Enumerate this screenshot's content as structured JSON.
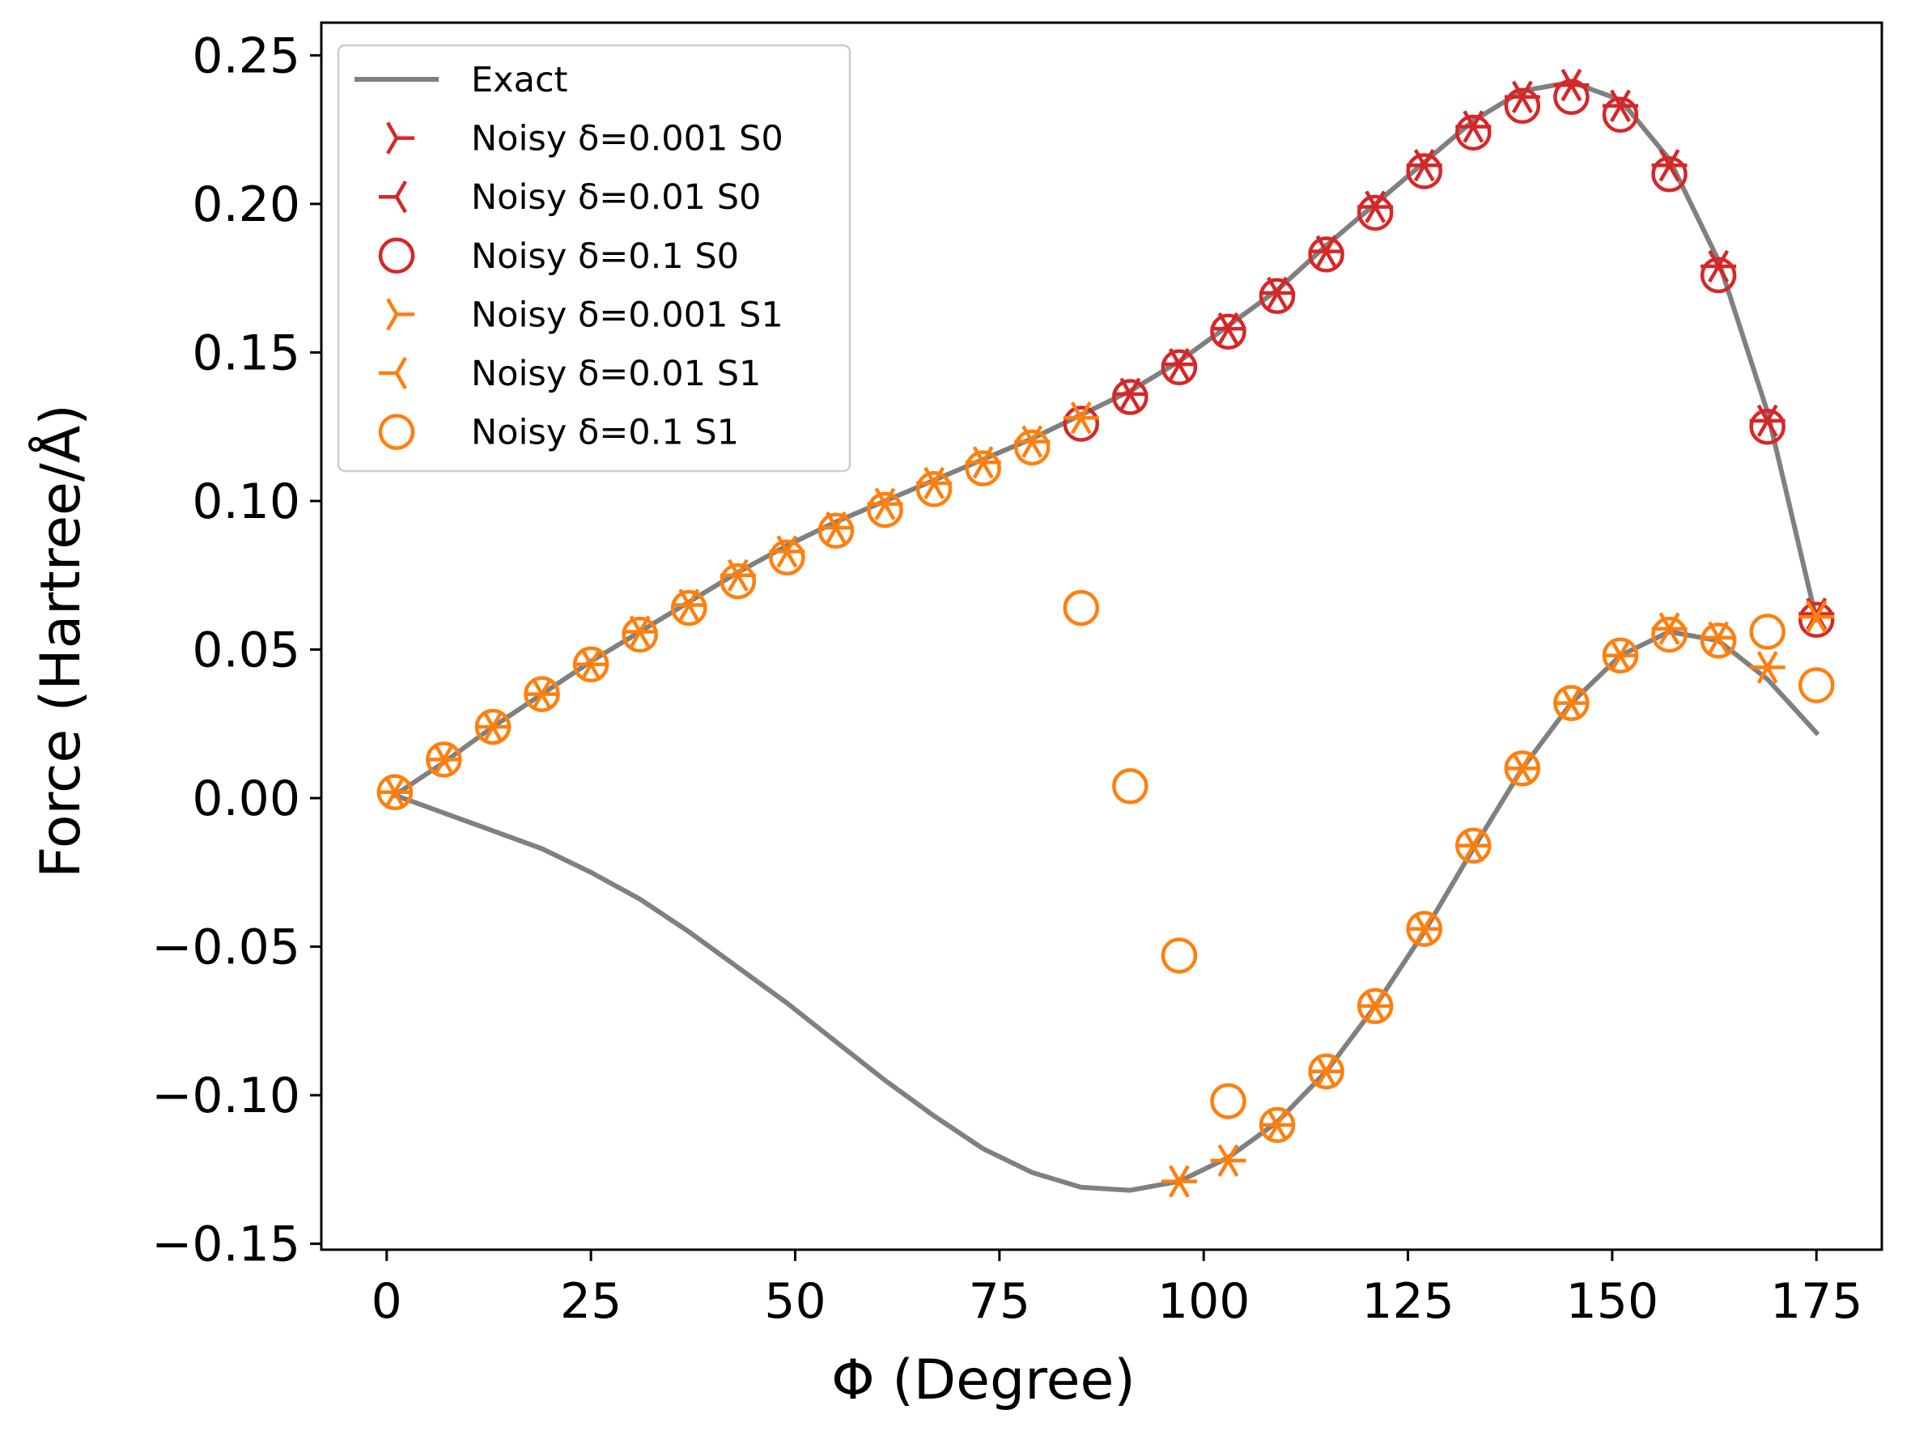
{
  "chart_data": {
    "type": "line+scatter",
    "xlabel": "Φ (Degree)",
    "ylabel": "Force (Hartree/Å)",
    "xlim": [
      -8,
      183
    ],
    "ylim": [
      -0.152,
      0.261
    ],
    "xticks": [
      0,
      25,
      50,
      75,
      100,
      125,
      150,
      175
    ],
    "xtick_labels": [
      "0",
      "25",
      "50",
      "75",
      "100",
      "125",
      "150",
      "175"
    ],
    "yticks": [
      -0.15,
      -0.1,
      -0.05,
      0.0,
      0.05,
      0.1,
      0.15,
      0.2,
      0.25
    ],
    "ytick_labels": [
      "−0.15",
      "−0.10",
      "−0.05",
      "0.00",
      "0.05",
      "0.10",
      "0.15",
      "0.20",
      "0.25"
    ],
    "legend_position": "top-left",
    "colors": {
      "exact": "#808080",
      "s0": "#d62728",
      "s1": "#ff7f0e"
    },
    "exact_lines": [
      {
        "name": "Exact",
        "x": [
          1,
          7,
          13,
          19,
          25,
          31,
          37,
          43,
          49,
          55,
          61,
          67,
          73,
          79,
          85,
          91,
          97,
          103,
          109,
          115,
          121,
          127,
          133,
          139,
          145,
          151,
          157,
          163,
          169,
          175
        ],
        "y": [
          0.001,
          0.012,
          0.024,
          0.035,
          0.046,
          0.056,
          0.066,
          0.076,
          0.085,
          0.093,
          0.1,
          0.107,
          0.114,
          0.121,
          0.129,
          0.137,
          0.147,
          0.159,
          0.171,
          0.186,
          0.2,
          0.214,
          0.228,
          0.238,
          0.241,
          0.235,
          0.215,
          0.181,
          0.13,
          0.06
        ]
      },
      {
        "name": "Exact",
        "x": [
          1,
          7,
          13,
          19,
          25,
          31,
          37,
          43,
          49,
          55,
          61,
          67,
          73,
          79,
          85,
          91,
          97,
          103,
          109,
          115,
          121,
          127,
          133,
          139,
          145,
          151,
          157,
          163,
          169,
          175
        ],
        "y": [
          0.001,
          -0.005,
          -0.011,
          -0.017,
          -0.025,
          -0.034,
          -0.045,
          -0.057,
          -0.069,
          -0.082,
          -0.095,
          -0.107,
          -0.118,
          -0.126,
          -0.131,
          -0.132,
          -0.129,
          -0.121,
          -0.109,
          -0.092,
          -0.07,
          -0.045,
          -0.017,
          0.01,
          0.032,
          0.048,
          0.056,
          0.053,
          0.04,
          0.022
        ]
      }
    ],
    "series": [
      {
        "name": "Noisy δ=0.001 S0",
        "marker": "tri_right",
        "color": "#d62728",
        "x": [
          91,
          97,
          103,
          109,
          115,
          121,
          127,
          133,
          139,
          145,
          151,
          157,
          163,
          169,
          175
        ],
        "y": [
          0.136,
          0.146,
          0.158,
          0.17,
          0.184,
          0.199,
          0.213,
          0.226,
          0.236,
          0.24,
          0.233,
          0.213,
          0.179,
          0.127,
          0.062
        ]
      },
      {
        "name": "Noisy δ=0.01 S0",
        "marker": "tri_left",
        "color": "#d62728",
        "x": [
          91,
          97,
          103,
          109,
          115,
          121,
          127,
          133,
          139,
          145,
          151,
          157,
          163,
          169,
          175
        ],
        "y": [
          0.136,
          0.146,
          0.158,
          0.17,
          0.184,
          0.199,
          0.213,
          0.226,
          0.236,
          0.24,
          0.233,
          0.213,
          0.179,
          0.127,
          0.062
        ]
      },
      {
        "name": "Noisy δ=0.1 S0",
        "marker": "circle",
        "color": "#d62728",
        "x": [
          85,
          91,
          97,
          103,
          109,
          115,
          121,
          127,
          133,
          139,
          145,
          151,
          157,
          163,
          169,
          175
        ],
        "y": [
          0.126,
          0.135,
          0.145,
          0.157,
          0.169,
          0.183,
          0.197,
          0.211,
          0.224,
          0.233,
          0.236,
          0.23,
          0.21,
          0.176,
          0.125,
          0.06
        ]
      },
      {
        "name": "Noisy δ=0.001 S1",
        "marker": "tri_right",
        "color": "#ff7f0e",
        "x": [
          1,
          7,
          13,
          19,
          25,
          31,
          37,
          43,
          49,
          55,
          61,
          67,
          73,
          79,
          85,
          97,
          103,
          109,
          115,
          121,
          127,
          133,
          139,
          145,
          151,
          157,
          163,
          169,
          175
        ],
        "y": [
          0.002,
          0.013,
          0.024,
          0.035,
          0.045,
          0.056,
          0.065,
          0.075,
          0.083,
          0.091,
          0.099,
          0.106,
          0.113,
          0.12,
          0.128,
          -0.129,
          -0.122,
          -0.11,
          -0.092,
          -0.07,
          -0.044,
          -0.016,
          0.01,
          0.032,
          0.048,
          0.057,
          0.054,
          0.044,
          0.061
        ]
      },
      {
        "name": "Noisy δ=0.01 S1",
        "marker": "tri_left",
        "color": "#ff7f0e",
        "x": [
          1,
          7,
          13,
          19,
          25,
          31,
          37,
          43,
          49,
          55,
          61,
          67,
          73,
          79,
          85,
          97,
          103,
          109,
          115,
          121,
          127,
          133,
          139,
          145,
          151,
          157,
          163,
          169,
          175
        ],
        "y": [
          0.002,
          0.013,
          0.024,
          0.035,
          0.045,
          0.056,
          0.065,
          0.075,
          0.083,
          0.091,
          0.099,
          0.106,
          0.113,
          0.12,
          0.128,
          -0.129,
          -0.122,
          -0.11,
          -0.092,
          -0.07,
          -0.044,
          -0.016,
          0.01,
          0.032,
          0.048,
          0.057,
          0.054,
          0.044,
          0.061
        ]
      },
      {
        "name": "Noisy δ=0.1 S1",
        "marker": "circle",
        "color": "#ff7f0e",
        "x": [
          1,
          7,
          13,
          19,
          25,
          31,
          37,
          43,
          49,
          55,
          61,
          67,
          73,
          79,
          85,
          91,
          97,
          103,
          109,
          115,
          121,
          127,
          133,
          139,
          145,
          151,
          157,
          163,
          169,
          175
        ],
        "y": [
          0.002,
          0.013,
          0.024,
          0.035,
          0.045,
          0.055,
          0.064,
          0.073,
          0.081,
          0.09,
          0.097,
          0.104,
          0.111,
          0.118,
          0.064,
          0.004,
          -0.053,
          -0.102,
          -0.11,
          -0.092,
          -0.07,
          -0.044,
          -0.016,
          0.01,
          0.032,
          0.048,
          0.055,
          0.053,
          0.056,
          0.038
        ]
      }
    ]
  }
}
